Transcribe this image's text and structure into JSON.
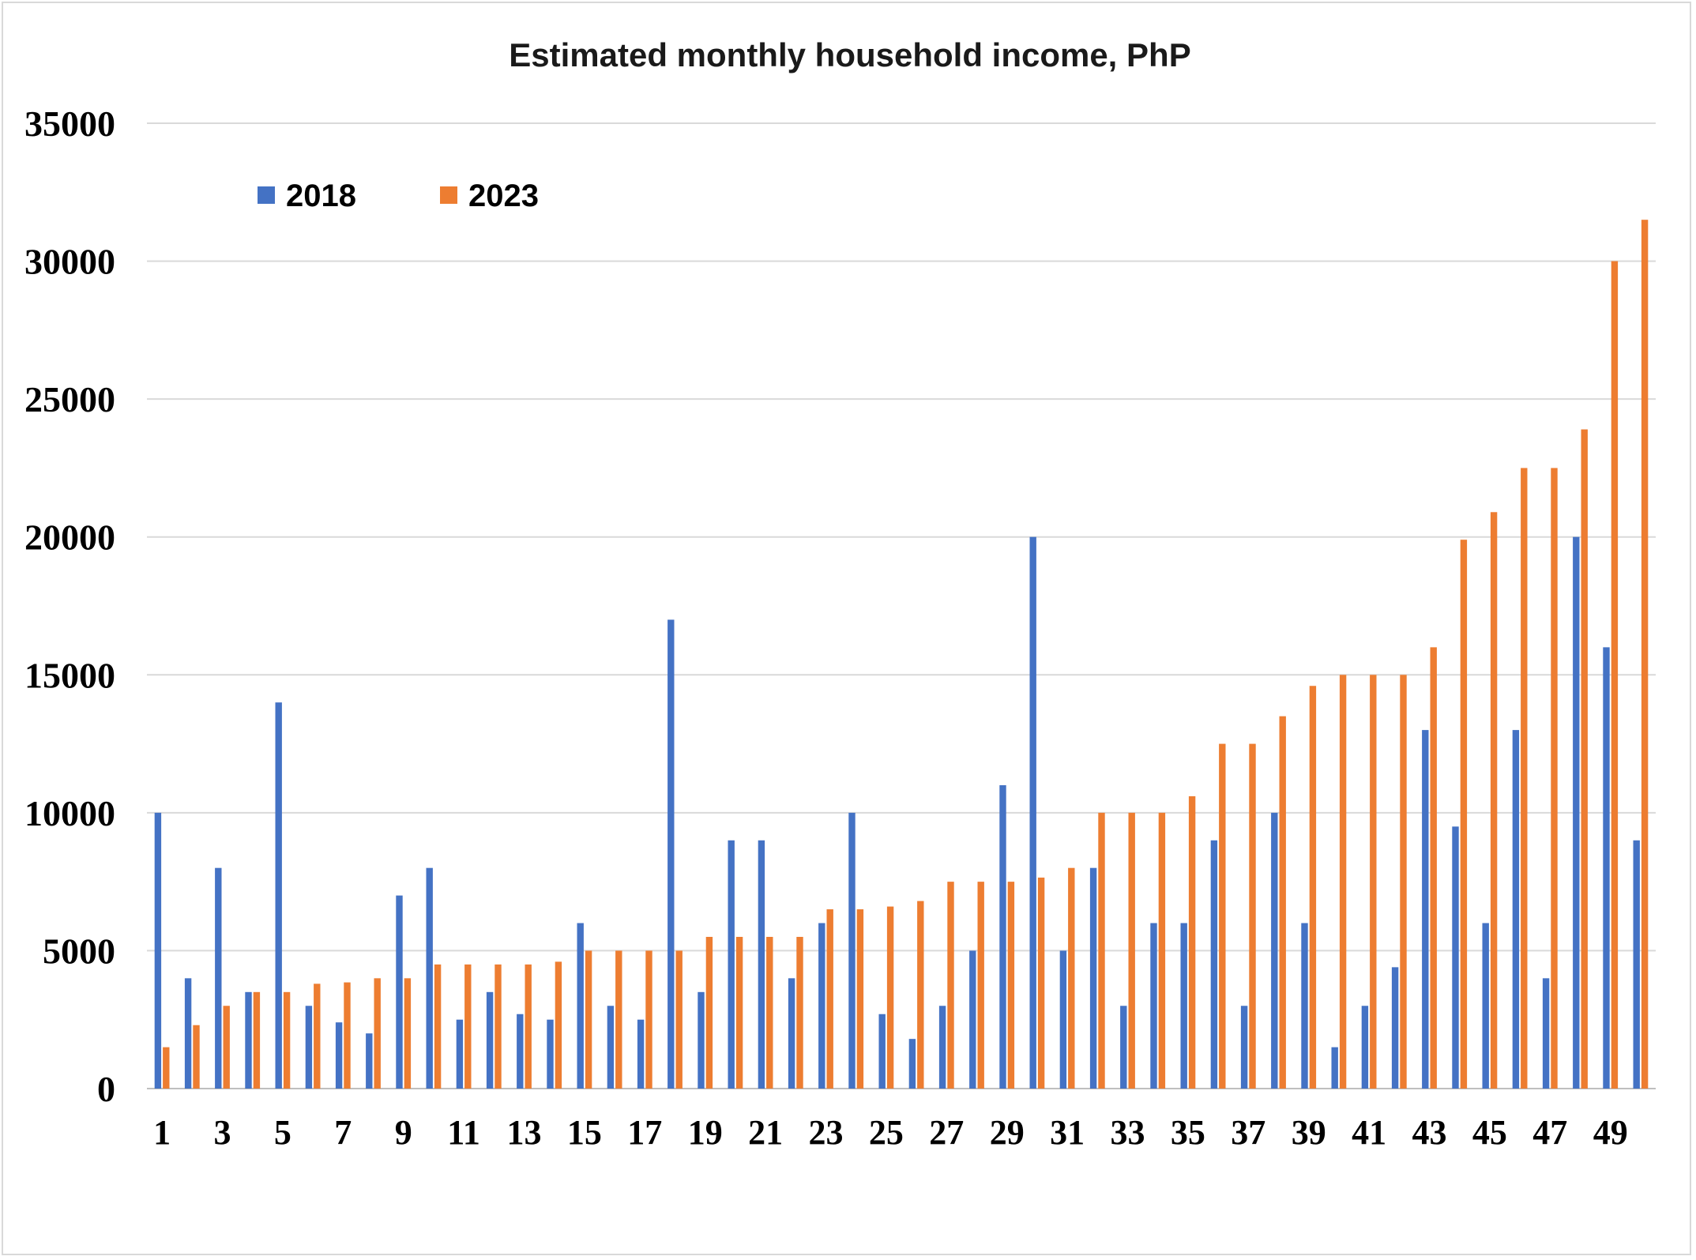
{
  "chart_data": {
    "type": "bar",
    "title": "Estimated monthly household income, PhP",
    "xlabel": "",
    "ylabel": "",
    "ylim": [
      0,
      35000
    ],
    "yticks": [
      0,
      5000,
      10000,
      15000,
      20000,
      25000,
      30000,
      35000
    ],
    "xtick_labels": [
      "1",
      "3",
      "5",
      "7",
      "9",
      "11",
      "13",
      "15",
      "17",
      "19",
      "21",
      "23",
      "25",
      "27",
      "29",
      "31",
      "33",
      "35",
      "37",
      "39",
      "41",
      "43",
      "45",
      "47",
      "49"
    ],
    "categories": [
      1,
      2,
      3,
      4,
      5,
      6,
      7,
      8,
      9,
      10,
      11,
      12,
      13,
      14,
      15,
      16,
      17,
      18,
      19,
      20,
      21,
      22,
      23,
      24,
      25,
      26,
      27,
      28,
      29,
      30,
      31,
      32,
      33,
      34,
      35,
      36,
      37,
      38,
      39,
      40,
      41,
      42,
      43,
      44,
      45,
      46,
      47,
      48,
      49,
      50
    ],
    "grid": true,
    "legend_position": "top-left",
    "series": [
      {
        "name": "2018",
        "color": "#4472c4",
        "values": [
          10000,
          4000,
          8000,
          3500,
          14000,
          3000,
          2400,
          2000,
          7000,
          8000,
          2500,
          3500,
          2700,
          2500,
          6000,
          3000,
          2500,
          17000,
          3500,
          9000,
          9000,
          4000,
          6000,
          10000,
          2700,
          1800,
          3000,
          5000,
          11000,
          20000,
          5000,
          8000,
          3000,
          6000,
          6000,
          9000,
          3000,
          10000,
          6000,
          1500,
          3000,
          4400,
          13000,
          9500,
          6000,
          13000,
          4000,
          20000,
          16000,
          9000
        ]
      },
      {
        "name": "2023",
        "color": "#ed7d31",
        "values": [
          1500,
          2300,
          3000,
          3500,
          3500,
          3800,
          3850,
          4000,
          4000,
          4500,
          4500,
          4500,
          4500,
          4600,
          5000,
          5000,
          5000,
          5000,
          5500,
          5500,
          5500,
          5500,
          6500,
          6500,
          6600,
          6800,
          7500,
          7500,
          7500,
          7650,
          8000,
          10000,
          10000,
          10000,
          10600,
          12500,
          12500,
          13500,
          14600,
          15000,
          15000,
          15000,
          16000,
          19900,
          20900,
          22500,
          22500,
          23900,
          30000,
          31500
        ]
      }
    ]
  }
}
